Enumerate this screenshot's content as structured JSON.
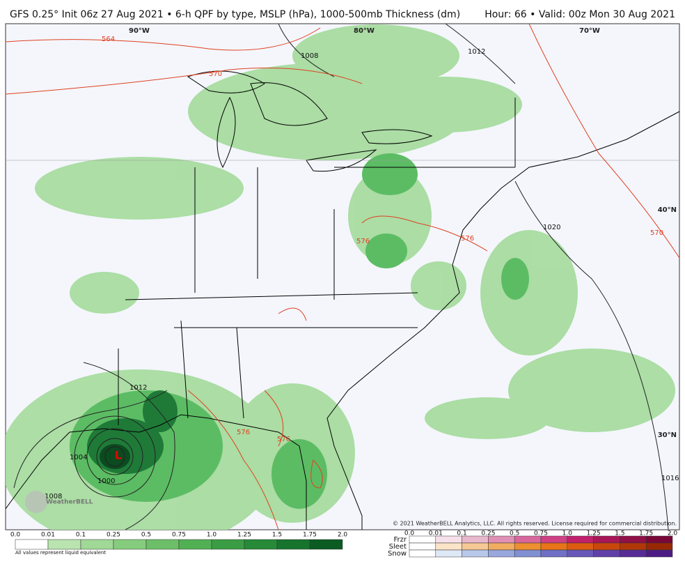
{
  "header": {
    "title": "GFS 0.25° Init 06z 27 Aug 2021 • 6-h QPF by type, MSLP (hPa), 1000-500mb Thickness (dm)",
    "valid": "Hour: 66 • Valid: 00z Mon 30 Aug 2021"
  },
  "map": {
    "longitudes": [
      "90°W",
      "80°W",
      "70°W"
    ],
    "latitudes": [
      "40°N",
      "30°N"
    ],
    "pressure_labels": [
      "1008",
      "1012",
      "1020",
      "1012",
      "1004",
      "1000",
      "1008",
      "1016"
    ],
    "thickness_labels": [
      "564",
      "570",
      "570",
      "576",
      "576",
      "576",
      "576"
    ],
    "low_label": "L",
    "logo": "WeatherBELL",
    "copyright": "© 2021 WeatherBELL Analytics, LLC. All rights reserved. License required for commercial distribution."
  },
  "legend": {
    "rain_ticks": [
      "0.0",
      "0.01",
      "0.1",
      "0.25",
      "0.5",
      "0.75",
      "1.0",
      "1.25",
      "1.5",
      "1.75",
      "2.0"
    ],
    "rain_note": "All values represent liquid equivalent",
    "types": [
      "Frzr",
      "Sleet",
      "Snow"
    ],
    "type_ticks": [
      "0.0",
      "0.01",
      "0.1",
      "0.25",
      "0.5",
      "0.75",
      "1.0",
      "1.25",
      "1.5",
      "1.75",
      "2.0"
    ]
  }
}
